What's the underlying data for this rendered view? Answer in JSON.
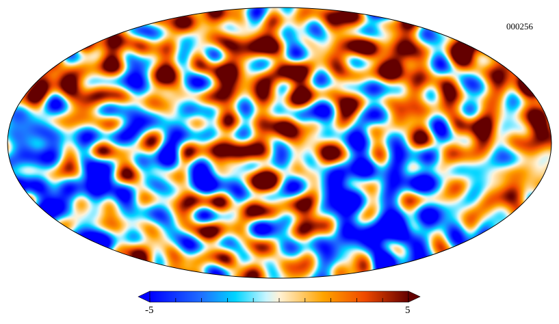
{
  "map": {
    "id_label": "000256",
    "projection": "mollweide",
    "field": "temperature-fluctuation"
  },
  "colorbar": {
    "min_label": "-5",
    "max_label": "5",
    "min": -5,
    "max": 5,
    "unit": "",
    "extend": "both",
    "colormap": "planck",
    "stops": [
      {
        "at": 0.0,
        "color": "#0000ff"
      },
      {
        "at": 0.2,
        "color": "#1f6fff"
      },
      {
        "at": 0.33,
        "color": "#00d5ff"
      },
      {
        "at": 0.45,
        "color": "#c9f5ff"
      },
      {
        "at": 0.5,
        "color": "#fff2d6"
      },
      {
        "at": 0.57,
        "color": "#ffd280"
      },
      {
        "at": 0.67,
        "color": "#ffa400"
      },
      {
        "at": 0.83,
        "color": "#f04a00"
      },
      {
        "at": 1.0,
        "color": "#640000"
      }
    ],
    "under_color": "#0000ff",
    "over_color": "#640000"
  }
}
